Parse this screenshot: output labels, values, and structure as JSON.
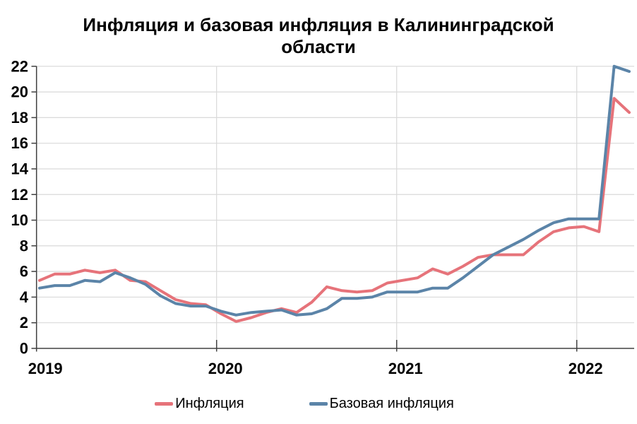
{
  "chart_data": {
    "type": "line",
    "title": "Инфляция и базовая инфляция в Калининградской области",
    "title_lines": [
      "Инфляция и базовая инфляция в Калининградской",
      "области"
    ],
    "x_monthly": [
      "2019-01",
      "2019-02",
      "2019-03",
      "2019-04",
      "2019-05",
      "2019-06",
      "2019-07",
      "2019-08",
      "2019-09",
      "2019-10",
      "2019-11",
      "2019-12",
      "2020-01",
      "2020-02",
      "2020-03",
      "2020-04",
      "2020-05",
      "2020-06",
      "2020-07",
      "2020-08",
      "2020-09",
      "2020-10",
      "2020-11",
      "2020-12",
      "2021-01",
      "2021-02",
      "2021-03",
      "2021-04",
      "2021-05",
      "2021-06",
      "2021-07",
      "2021-08",
      "2021-09",
      "2021-10",
      "2021-11",
      "2021-12",
      "2022-01",
      "2022-02",
      "2022-03",
      "2022-04"
    ],
    "x_axis_tick_labels": [
      "2019",
      "2020",
      "2021",
      "2022"
    ],
    "series": [
      {
        "name": "Инфляция",
        "color": "#E6737A",
        "values": [
          5.3,
          5.8,
          5.8,
          6.1,
          5.9,
          6.1,
          5.3,
          5.2,
          4.5,
          3.8,
          3.5,
          3.4,
          2.7,
          2.1,
          2.4,
          2.8,
          3.1,
          2.8,
          3.6,
          4.8,
          4.5,
          4.4,
          4.5,
          5.1,
          5.3,
          5.5,
          6.2,
          5.8,
          6.4,
          7.1,
          7.3,
          7.3,
          7.3,
          8.3,
          9.1,
          9.4,
          9.5,
          9.1,
          19.5,
          18.4
        ]
      },
      {
        "name": "Базовая инфляция",
        "color": "#5B84A8",
        "values": [
          4.7,
          4.9,
          4.9,
          5.3,
          5.2,
          5.9,
          5.5,
          5.0,
          4.1,
          3.5,
          3.3,
          3.3,
          2.9,
          2.6,
          2.8,
          2.9,
          3.0,
          2.6,
          2.7,
          3.1,
          3.9,
          3.9,
          4.0,
          4.4,
          4.4,
          4.4,
          4.7,
          4.7,
          5.5,
          6.4,
          7.3,
          7.9,
          8.5,
          9.2,
          9.8,
          10.1,
          10.1,
          10.1,
          22.0,
          21.6
        ]
      }
    ],
    "ylim": [
      0,
      22
    ],
    "ytick_step": 2,
    "grid": true,
    "legend_position": "bottom",
    "colors": {
      "gridline": "#D9D9D9",
      "axis": "#404040",
      "text": "#000000",
      "background": "#FFFFFF"
    }
  }
}
